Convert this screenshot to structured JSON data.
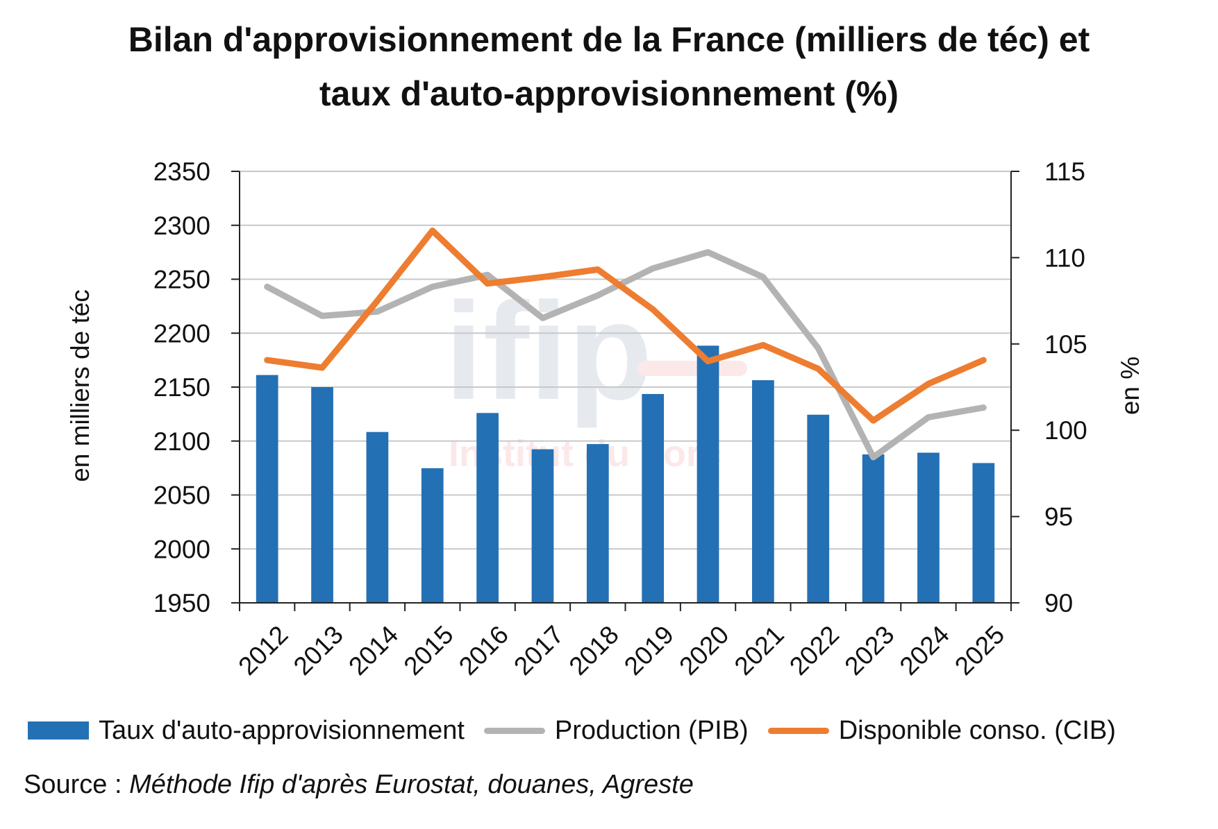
{
  "title": {
    "line1": "Bilan d'approvisionnement de la France (milliers de téc) et",
    "line2": "taux d'auto-approvisionnement (%)"
  },
  "watermark": {
    "logo": "ifip",
    "tagline": "Institut du porc"
  },
  "colors": {
    "bars": "#2470b5",
    "production": "#b3b3b3",
    "disponible": "#ed7d31",
    "grid": "#c8c8c8",
    "axis": "#222222"
  },
  "legend": {
    "bars": "Taux d'auto-approvisionnement",
    "production": "Production (PIB)",
    "disponible": "Disponible conso. (CIB)"
  },
  "source": {
    "label": "Source : ",
    "text": "Méthode Ifip d'après Eurostat, douanes, Agreste"
  },
  "chart_data": {
    "type": "bar",
    "categories": [
      "2012",
      "2013",
      "2014",
      "2015",
      "2016",
      "2017",
      "2018",
      "2019",
      "2020",
      "2021",
      "2022",
      "2023",
      "2024",
      "2025"
    ],
    "y_left": {
      "label": "en milliers de téc",
      "min": 1950,
      "max": 2350,
      "step": 50
    },
    "y_right": {
      "label": "en %",
      "min": 90,
      "max": 115,
      "step": 5
    },
    "grid": true,
    "legend_position": "bottom",
    "series": [
      {
        "name": "Taux d'auto-approvisionnement",
        "type": "bar",
        "axis": "right",
        "values": [
          103.2,
          102.5,
          99.9,
          97.8,
          101.0,
          98.9,
          99.2,
          102.1,
          104.9,
          102.9,
          100.9,
          98.6,
          98.7,
          98.1
        ]
      },
      {
        "name": "Production (PIB)",
        "type": "line",
        "axis": "left",
        "values": [
          2243,
          2216,
          2220,
          2243,
          2254,
          2214,
          2235,
          2260,
          2275,
          2252,
          2186,
          2085,
          2122,
          2131
        ]
      },
      {
        "name": "Disponible conso. (CIB)",
        "type": "line",
        "axis": "left",
        "values": [
          2175,
          2168,
          2230,
          2295,
          2246,
          2252,
          2259,
          2222,
          2174,
          2189,
          2167,
          2119,
          2153,
          2175
        ]
      }
    ]
  }
}
